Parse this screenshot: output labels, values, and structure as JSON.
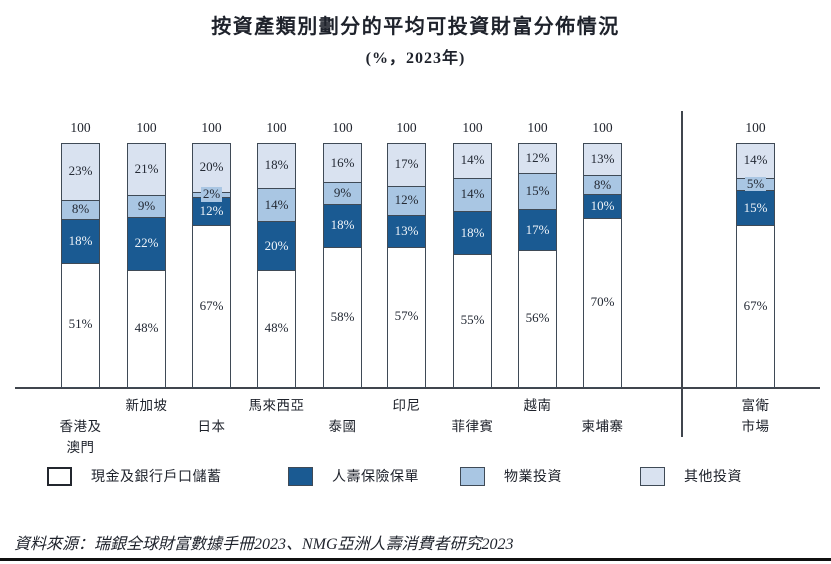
{
  "title": "按資產類別劃分的平均可投資財富分佈情況",
  "subtitle": "(%，2023年)",
  "source": "資料來源：瑞銀全球財富數據手冊2023、NMG亞洲人壽消費者研究2023",
  "totals_label": "100",
  "colors": {
    "cash": "#ffffff",
    "life_insurance": "#1a5a92",
    "property": "#a9c6e3",
    "other": "#d9e2f0",
    "bar_border": "#3f4a56",
    "axis": "#40454d",
    "text": "#1e222b"
  },
  "legend": [
    {
      "key": "cash",
      "label": "現金及銀行戶口儲蓄",
      "color": "#ffffff"
    },
    {
      "key": "life_insurance",
      "label": "人壽保險保單",
      "color": "#1a5a92"
    },
    {
      "key": "property",
      "label": "物業投資",
      "color": "#a9c6e3"
    },
    {
      "key": "other",
      "label": "其他投資",
      "color": "#d9e2f0"
    }
  ],
  "chart_data": {
    "type": "bar",
    "stacked": true,
    "title": "按資產類別劃分的平均可投資財富分佈情況",
    "unit": "%",
    "year": 2023,
    "ylim": [
      0,
      100
    ],
    "bar_total_label": "100",
    "legend_position": "bottom",
    "grid": false,
    "categories": [
      "香港及澳門",
      "新加坡",
      "日本",
      "馬來西亞",
      "泰國",
      "印尼",
      "菲律賓",
      "越南",
      "柬埔寨",
      "富衛市場"
    ],
    "category_label_lines": [
      [
        "香港及",
        "澳門"
      ],
      [
        "新加坡"
      ],
      [
        "日本"
      ],
      [
        "馬來西亞"
      ],
      [
        "泰國"
      ],
      [
        "印尼"
      ],
      [
        "菲律賓"
      ],
      [
        "越南"
      ],
      [
        "柬埔寨"
      ],
      [
        "富衛",
        "市場"
      ]
    ],
    "series": [
      {
        "key": "cash",
        "name": "現金及銀行戶口儲蓄",
        "color": "#ffffff",
        "values": [
          51,
          48,
          67,
          48,
          58,
          57,
          55,
          56,
          70,
          67
        ]
      },
      {
        "key": "life_insurance",
        "name": "人壽保險保單",
        "color": "#1a5a92",
        "values": [
          18,
          22,
          12,
          20,
          18,
          13,
          18,
          17,
          10,
          15
        ]
      },
      {
        "key": "property",
        "name": "物業投資",
        "color": "#a9c6e3",
        "values": [
          8,
          9,
          2,
          14,
          9,
          12,
          14,
          15,
          8,
          5
        ]
      },
      {
        "key": "other",
        "name": "其他投資",
        "color": "#d9e2f0",
        "values": [
          23,
          21,
          20,
          18,
          16,
          17,
          14,
          12,
          13,
          14
        ]
      }
    ]
  }
}
